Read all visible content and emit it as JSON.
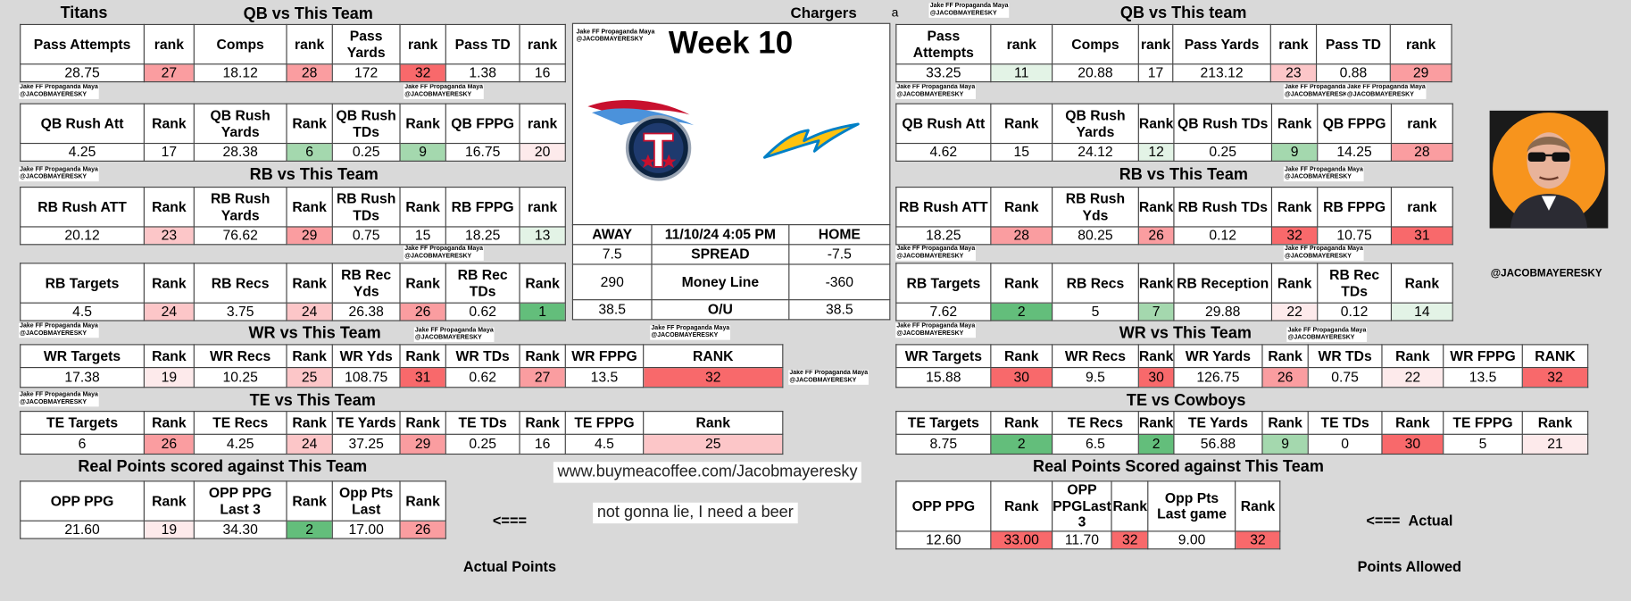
{
  "colors": {
    "red_strong": "#f8696b",
    "red_mid": "#fa9da0",
    "red_light": "#fcc6c8",
    "red_pale": "#fdeaeb",
    "green_strong": "#63be7b",
    "green_mid": "#a4d8ae",
    "green_pale": "#e3f3e6",
    "white": "#ffffff"
  },
  "watermark_line1": "Jake FF Propaganda Maya",
  "watermark_line2": "@JACOBMAYERESKY",
  "left": {
    "team": "Titans",
    "qb": {
      "title": "QB vs This Team",
      "row1": {
        "headers": [
          "Pass Attempts",
          "rank",
          "Comps",
          "rank",
          "Pass Yards",
          "rank",
          "Pass TD",
          "rank"
        ],
        "values": [
          "28.75",
          "27",
          "18.12",
          "28",
          "172",
          "32",
          "1.38",
          "16"
        ]
      },
      "row2": {
        "headers": [
          "QB Rush Att",
          "Rank",
          "QB Rush Yards",
          "Rank",
          "QB Rush TDs",
          "Rank",
          "QB FPPG",
          "rank"
        ],
        "values": [
          "4.25",
          "17",
          "28.38",
          "6",
          "0.25",
          "9",
          "16.75",
          "20"
        ]
      }
    },
    "rb": {
      "title": "RB vs This Team",
      "row1": {
        "headers": [
          "RB Rush ATT",
          "Rank",
          "RB Rush Yards",
          "Rank",
          "RB Rush TDs",
          "Rank",
          "RB FPPG",
          "rank"
        ],
        "values": [
          "20.12",
          "23",
          "76.62",
          "29",
          "0.75",
          "15",
          "18.25",
          "13"
        ]
      },
      "row2": {
        "headers": [
          "RB Targets",
          "Rank",
          "RB Recs",
          "Rank",
          "RB Rec Yds",
          "Rank",
          "RB Rec TDs",
          "Rank"
        ],
        "values": [
          "4.5",
          "24",
          "3.75",
          "24",
          "26.38",
          "26",
          "0.62",
          "1"
        ]
      }
    },
    "wr": {
      "title": "WR vs This Team",
      "headers": [
        "WR Targets",
        "Rank",
        "WR Recs",
        "Rank",
        "WR Yds",
        "Rank",
        "WR TDs",
        "Rank",
        "WR FPPG",
        "RANK"
      ],
      "values": [
        "17.38",
        "19",
        "10.25",
        "25",
        "108.75",
        "31",
        "0.62",
        "27",
        "13.5",
        "32"
      ]
    },
    "te": {
      "title": "TE vs This Team",
      "headers": [
        "TE Targets",
        "Rank",
        "TE Recs",
        "Rank",
        "TE Yards",
        "Rank",
        "TE TDs",
        "Rank",
        "TE FPPG",
        "Rank"
      ],
      "values": [
        "6",
        "26",
        "4.25",
        "24",
        "37.25",
        "29",
        "0.25",
        "16",
        "4.5",
        "25"
      ]
    },
    "real": {
      "title": "Real Points scored against This Team",
      "headers": [
        "OPP PPG",
        "Rank",
        "OPP PPG Last 3",
        "Rank",
        "Opp Pts Last",
        "Rank"
      ],
      "values": [
        "21.60",
        "19",
        "34.30",
        "2",
        "17.00",
        "26"
      ]
    },
    "arrow": "<===",
    "arrow_label": "Actual Points"
  },
  "center": {
    "opponent": "Chargers",
    "week": "Week 10",
    "logo_left": "titans-logo",
    "logo_right": "chargers-bolt-logo",
    "away": "AWAY",
    "date": "11/10/24 4:05 PM",
    "home": "HOME",
    "spread_away": "7.5",
    "spread_label": "SPREAD",
    "spread_home": "-7.5",
    "ml_away": "290",
    "ml_label": "Money Line",
    "ml_home": "-360",
    "ou_away": "38.5",
    "ou_label": "O/U",
    "ou_home": "38.5",
    "url": "www.buymeacoffee.com/Jacobmayeresky",
    "beer": "not gonna lie, I need a beer"
  },
  "right": {
    "stray": "a",
    "qb": {
      "title": "QB vs This team",
      "row1": {
        "headers": [
          "Pass Attempts",
          "rank",
          "Comps",
          "rank",
          "Pass Yards",
          "rank",
          "Pass TD",
          "rank"
        ],
        "values": [
          "33.25",
          "11",
          "20.88",
          "17",
          "213.12",
          "23",
          "0.88",
          "29"
        ]
      },
      "row2": {
        "headers": [
          "QB Rush Att",
          "Rank",
          "QB Rush Yards",
          "Rank",
          "QB Rush TDs",
          "Rank",
          "QB FPPG",
          "rank"
        ],
        "values": [
          "4.62",
          "15",
          "24.12",
          "12",
          "0.25",
          "9",
          "14.25",
          "28"
        ]
      }
    },
    "rb": {
      "title": "RB vs This Team",
      "row1": {
        "headers": [
          "RB Rush ATT",
          "Rank",
          "RB Rush Yds",
          "Rank",
          "RB Rush TDs",
          "Rank",
          "RB FPPG",
          "rank"
        ],
        "values": [
          "18.25",
          "28",
          "80.25",
          "26",
          "0.12",
          "32",
          "10.75",
          "31"
        ]
      },
      "row2": {
        "headers": [
          "RB Targets",
          "Rank",
          "RB Recs",
          "Rank",
          "RB Reception",
          "Rank",
          "RB Rec TDs",
          "Rank"
        ],
        "values": [
          "7.62",
          "2",
          "5",
          "7",
          "29.88",
          "22",
          "0.12",
          "14"
        ]
      }
    },
    "wr": {
      "title": "WR vs This Team",
      "headers": [
        "WR Targets",
        "Rank",
        "WR Recs",
        "Rank",
        "WR Yards",
        "Rank",
        "WR TDs",
        "Rank",
        "WR FPPG",
        "RANK"
      ],
      "values": [
        "15.88",
        "30",
        "9.5",
        "30",
        "126.75",
        "26",
        "0.75",
        "22",
        "13.5",
        "32"
      ]
    },
    "te": {
      "title": "TE vs Cowboys",
      "headers": [
        "TE Targets",
        "Rank",
        "TE Recs",
        "Rank",
        "TE Yards",
        "Rank",
        "TE TDs",
        "Rank",
        "TE FPPG",
        "Rank"
      ],
      "values": [
        "8.75",
        "2",
        "6.5",
        "2",
        "56.88",
        "9",
        "0",
        "30",
        "5",
        "21"
      ]
    },
    "real": {
      "title": "Real Points Scored against This Team",
      "headers": [
        "OPP PPG",
        "Rank",
        "OPP PPGLast 3",
        "Rank",
        "Opp Pts Last game",
        "Rank"
      ],
      "values": [
        "12.60",
        "33.00",
        "11.70",
        "32",
        "9.00",
        "32"
      ]
    },
    "arrow": "<===",
    "arrow_label_1": "Actual",
    "arrow_label_2": "Points Allowed"
  },
  "profile": {
    "handle": "@JACOBMAYERESKY",
    "avatar": "avatar-photo"
  }
}
